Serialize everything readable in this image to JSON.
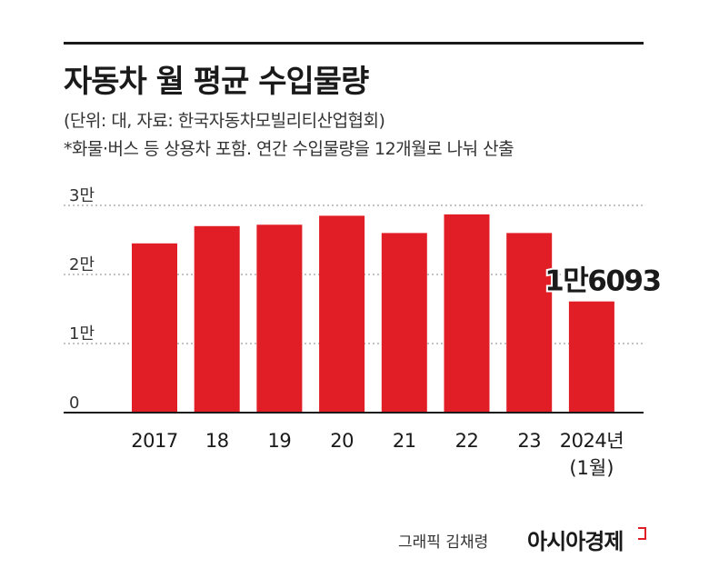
{
  "header": {
    "title": "자동차 월 평균 수입물량",
    "unit_note": "(단위: 대, 자료: 한국자동차모빌리티산업협회)",
    "footnote": "*화물·버스 등 상용차 포함. 연간 수입물량을 12개월로 나눠 산출"
  },
  "footer": {
    "credit": "그래픽 김채령",
    "brand": "아시아경제"
  },
  "colors": {
    "bar": "#e11d25",
    "text": "#1a1a1a",
    "grid": "#888888"
  },
  "chart_data": {
    "type": "bar",
    "categories": [
      "2017",
      "18",
      "19",
      "20",
      "21",
      "22",
      "23",
      "2024년"
    ],
    "category_sublabels": [
      "",
      "",
      "",
      "",
      "",
      "",
      "",
      "(1월)"
    ],
    "values": [
      24500,
      27000,
      27200,
      28500,
      26000,
      28700,
      26000,
      16093
    ],
    "data_labels": [
      "",
      "",
      "",
      "",
      "",
      "",
      "",
      "1만6093"
    ],
    "ylim": [
      0,
      30000
    ],
    "yticks": [
      0,
      10000,
      20000,
      30000
    ],
    "ytick_labels": [
      "0",
      "1만",
      "2만",
      "3만"
    ],
    "grid": "dotted-horizontal",
    "legend": "none",
    "xlabel": "",
    "ylabel": ""
  }
}
